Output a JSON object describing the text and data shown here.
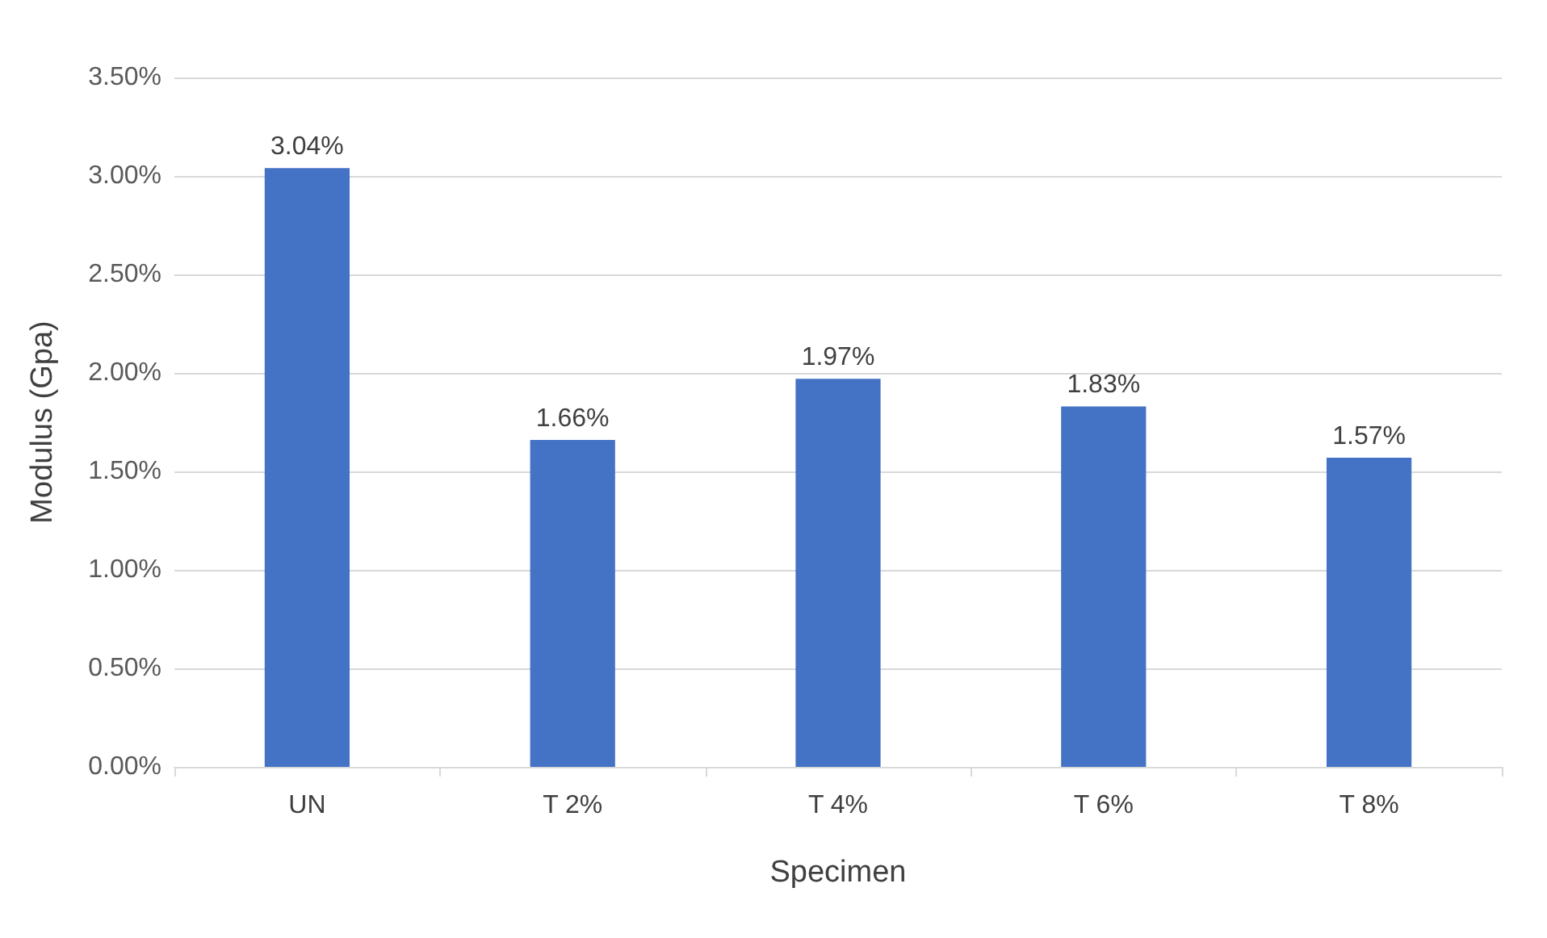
{
  "chart_data": {
    "type": "bar",
    "xlabel": "Specimen",
    "ylabel": "Modulus (Gpa)",
    "categories": [
      "UN",
      "T 2%",
      "T 4%",
      "T 6%",
      "T 8%"
    ],
    "values": [
      3.04,
      1.66,
      1.97,
      1.83,
      1.57
    ],
    "value_labels": [
      "3.04%",
      "1.66%",
      "1.97%",
      "1.83%",
      "1.57%"
    ],
    "color": "#4472c4",
    "ylim": [
      0,
      3.5
    ],
    "yticks": [
      {
        "value": 0,
        "label": "0.00%"
      },
      {
        "value": 0.5,
        "label": "0.50%"
      },
      {
        "value": 1,
        "label": "1.00%"
      },
      {
        "value": 1.5,
        "label": "1.50%"
      },
      {
        "value": 2,
        "label": "2.00%"
      },
      {
        "value": 2.5,
        "label": "2.50%"
      },
      {
        "value": 3,
        "label": "3.00%"
      },
      {
        "value": 3.5,
        "label": "3.50%"
      }
    ],
    "grid": "y"
  }
}
